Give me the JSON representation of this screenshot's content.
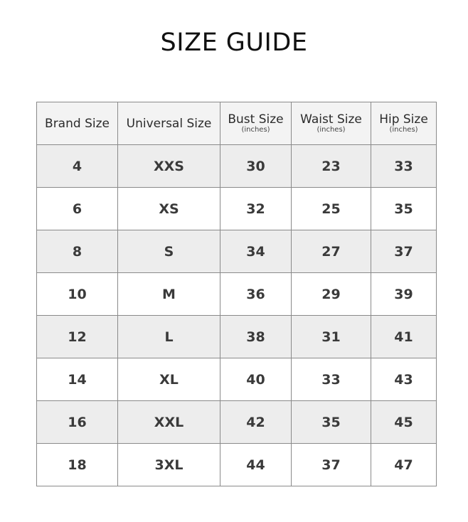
{
  "title": "SIZE GUIDE",
  "headers": [
    {
      "label": "Brand Size",
      "unit": ""
    },
    {
      "label": "Universal Size",
      "unit": ""
    },
    {
      "label": "Bust Size",
      "unit": "(inches)"
    },
    {
      "label": "Waist Size",
      "unit": "(inches)"
    },
    {
      "label": "Hip Size",
      "unit": "(inches)"
    }
  ],
  "rows": [
    [
      "4",
      "XXS",
      "30",
      "23",
      "33"
    ],
    [
      "6",
      "XS",
      "32",
      "25",
      "35"
    ],
    [
      "8",
      "S",
      "34",
      "27",
      "37"
    ],
    [
      "10",
      "M",
      "36",
      "29",
      "39"
    ],
    [
      "12",
      "L",
      "38",
      "31",
      "41"
    ],
    [
      "14",
      "XL",
      "40",
      "33",
      "43"
    ],
    [
      "16",
      "XXL",
      "42",
      "35",
      "45"
    ],
    [
      "18",
      "3XL",
      "44",
      "37",
      "47"
    ]
  ],
  "colors": {
    "header_bg": "#f3f3f3",
    "shaded_row_bg": "#ededed",
    "border": "#8a8a8a"
  }
}
